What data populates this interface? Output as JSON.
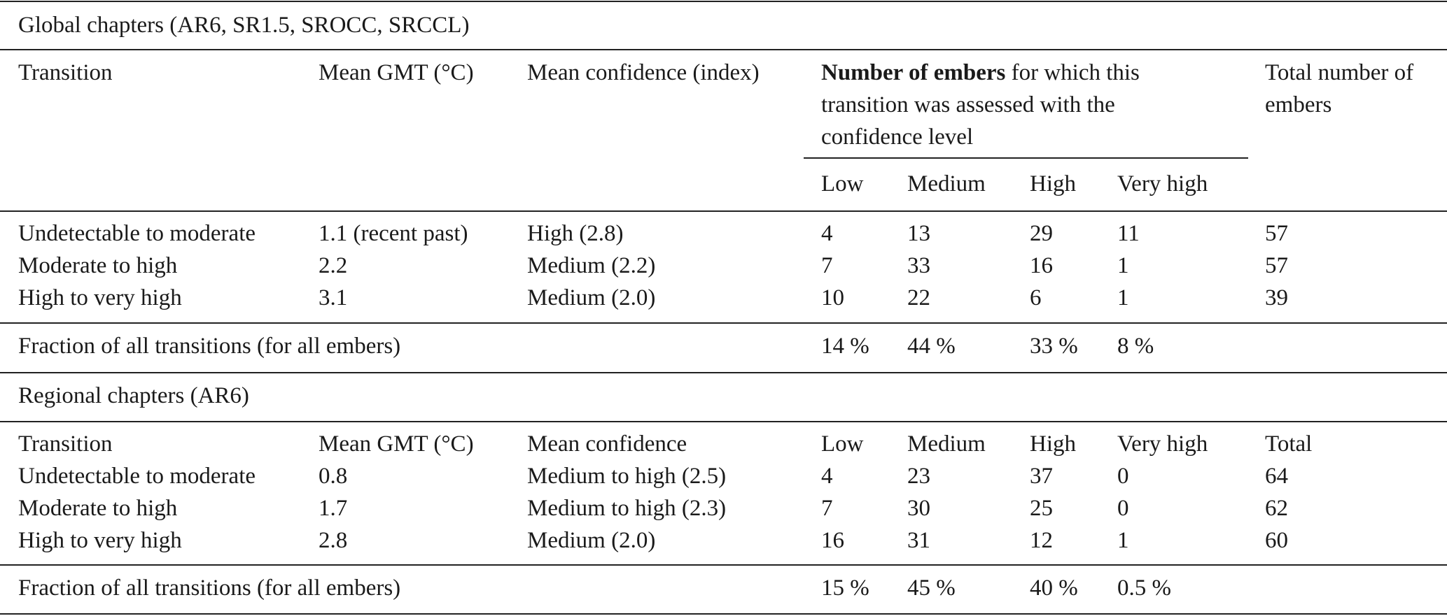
{
  "global": {
    "section_title": "Global chapters (AR6, SR1.5, SROCC, SRCCL)",
    "header": {
      "transition": "Transition",
      "mean_gmt": "Mean GMT (°C)",
      "mean_confidence": "Mean confidence (index)",
      "number_bold": "Number of embers",
      "number_rest_line1": " for which this",
      "number_line2": "transition was assessed with the",
      "number_line3": "confidence level",
      "total_line1": "Total number of",
      "total_line2": "embers",
      "low": "Low",
      "medium": "Medium",
      "high": "High",
      "very_high": "Very high"
    },
    "rows": [
      {
        "transition": "Undetectable to moderate",
        "gmt": "1.1 (recent past)",
        "confidence": "High (2.8)",
        "low": "4",
        "medium": "13",
        "high": "29",
        "very_high": "11",
        "total": "57"
      },
      {
        "transition": "Moderate to high",
        "gmt": "2.2",
        "confidence": "Medium (2.2)",
        "low": "7",
        "medium": "33",
        "high": "16",
        "very_high": "1",
        "total": "57"
      },
      {
        "transition": "High to very high",
        "gmt": "3.1",
        "confidence": "Medium (2.0)",
        "low": "10",
        "medium": "22",
        "high": "6",
        "very_high": "1",
        "total": "39"
      }
    ],
    "fraction": {
      "label": "Fraction of all transitions (for all embers)",
      "low": "14 %",
      "medium": "44 %",
      "high": "33 %",
      "very_high": "8 %"
    }
  },
  "regional": {
    "section_title": "Regional chapters (AR6)",
    "header": {
      "transition": "Transition",
      "mean_gmt": "Mean GMT (°C)",
      "mean_confidence": "Mean confidence",
      "low": "Low",
      "medium": "Medium",
      "high": "High",
      "very_high": "Very high",
      "total": "Total"
    },
    "rows": [
      {
        "transition": "Undetectable to moderate",
        "gmt": "0.8",
        "confidence": "Medium to high (2.5)",
        "low": "4",
        "medium": "23",
        "high": "37",
        "very_high": "0",
        "total": "64"
      },
      {
        "transition": "Moderate to high",
        "gmt": "1.7",
        "confidence": "Medium to high (2.3)",
        "low": "7",
        "medium": "30",
        "high": "25",
        "very_high": "0",
        "total": "62"
      },
      {
        "transition": "High to very high",
        "gmt": "2.8",
        "confidence": "Medium (2.0)",
        "low": "16",
        "medium": "31",
        "high": "12",
        "very_high": "1",
        "total": "60"
      }
    ],
    "fraction": {
      "label": "Fraction of all transitions (for all embers)",
      "low": "15 %",
      "medium": "45 %",
      "high": "40 %",
      "very_high": "0.5 %"
    }
  }
}
